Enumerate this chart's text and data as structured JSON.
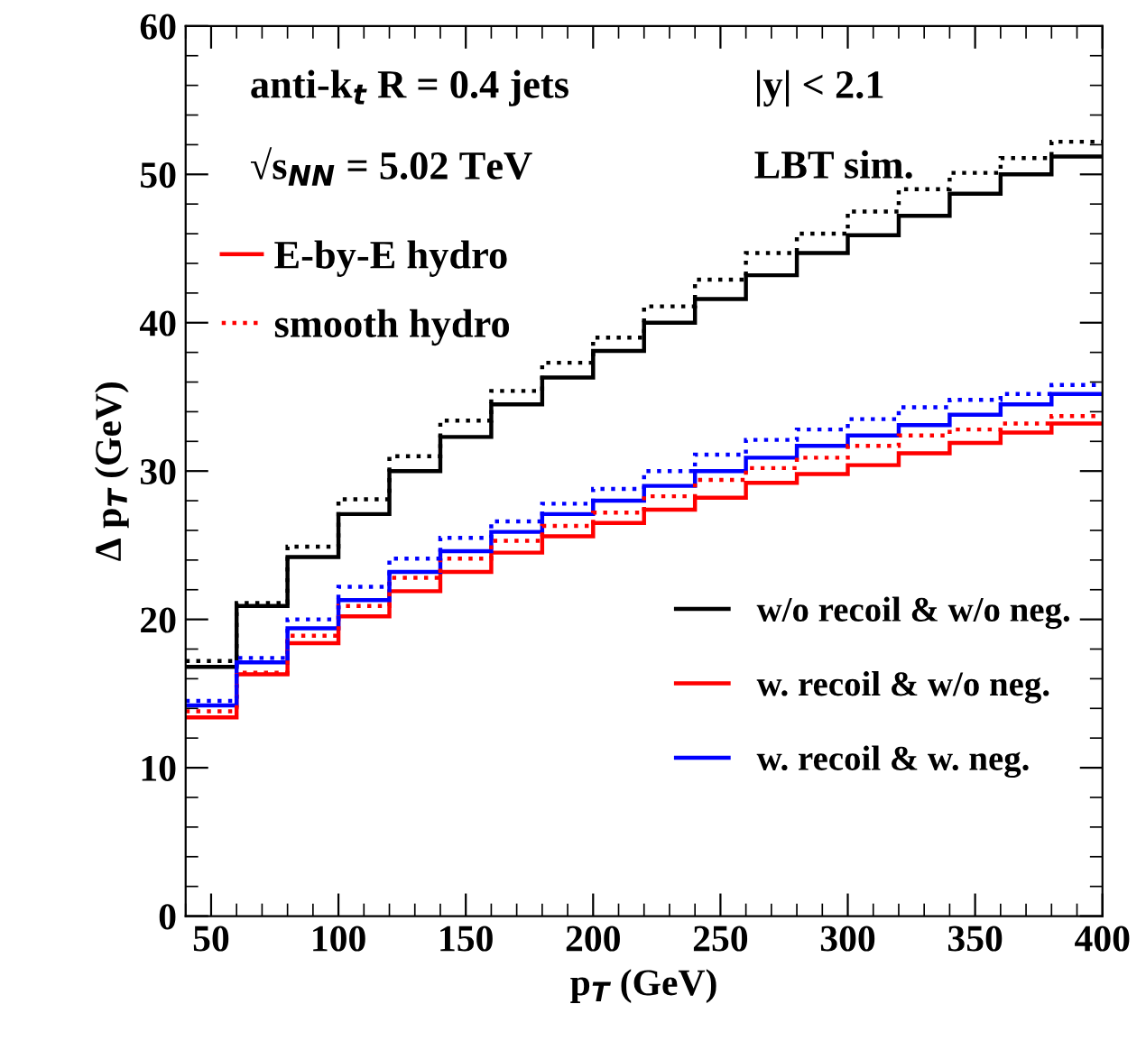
{
  "chart_data": {
    "type": "histogram",
    "xlabel": "p$_{T}$ (GeV)",
    "ylabel": "Δ p$_{T}$ (GeV)",
    "annotations": [
      "anti-k$_{t}$ R = 0.4 jets",
      "|y| < 2.1",
      "√s$_{NN}$ = 5.02 TeV",
      "LBT sim.",
      "E-by-E hydro",
      "smooth hydro"
    ],
    "bins": [
      40,
      60,
      80,
      100,
      120,
      140,
      160,
      180,
      200,
      220,
      240,
      260,
      280,
      300,
      320,
      340,
      360,
      380,
      400
    ],
    "series": [
      {
        "name": "w/o recoil & w/o neg.",
        "color": "#000000",
        "line_style": "solid",
        "values": [
          16.8,
          20.9,
          24.2,
          27.1,
          30.0,
          32.3,
          34.5,
          36.3,
          38.1,
          40.0,
          41.6,
          43.2,
          44.7,
          45.9,
          47.2,
          48.7,
          50.0,
          51.2
        ]
      },
      {
        "name": "w. recoil & w/o neg.",
        "color": "#ff0000",
        "line_style": "solid",
        "values": [
          13.4,
          16.3,
          18.4,
          20.2,
          21.9,
          23.2,
          24.5,
          25.6,
          26.5,
          27.4,
          28.2,
          29.2,
          29.8,
          30.4,
          31.2,
          31.9,
          32.6,
          33.2
        ]
      },
      {
        "name": "w. recoil & w. neg.",
        "color": "#0000ff",
        "line_style": "solid",
        "values": [
          14.2,
          17.1,
          19.4,
          21.3,
          23.2,
          24.6,
          25.9,
          27.1,
          28.0,
          29.0,
          30.0,
          30.9,
          31.7,
          32.4,
          33.1,
          33.8,
          34.5,
          35.2
        ]
      },
      {
        "color": "#000000",
        "line_style": "dotted",
        "values": [
          17.2,
          21.1,
          24.9,
          28.1,
          31.0,
          33.4,
          35.4,
          37.3,
          39.0,
          41.1,
          42.9,
          44.7,
          46.0,
          47.5,
          49.0,
          50.1,
          51.1,
          52.2
        ]
      },
      {
        "color": "#ff0000",
        "line_style": "dotted",
        "values": [
          13.8,
          16.4,
          18.9,
          20.9,
          22.8,
          24.1,
          25.3,
          26.3,
          27.2,
          28.3,
          29.4,
          30.2,
          30.9,
          31.7,
          32.4,
          32.8,
          33.2,
          33.7
        ]
      },
      {
        "color": "#0000ff",
        "line_style": "dotted",
        "values": [
          14.5,
          17.4,
          20.0,
          22.2,
          24.1,
          25.5,
          26.6,
          27.8,
          28.8,
          30.0,
          31.1,
          32.1,
          32.8,
          33.5,
          34.3,
          34.8,
          35.2,
          35.8
        ]
      }
    ],
    "xlim": [
      40,
      400
    ],
    "xticks": [
      50,
      100,
      150,
      200,
      250,
      300,
      350,
      400
    ],
    "ylim": [
      0,
      60
    ],
    "yticks": [
      0,
      10,
      20,
      30,
      40,
      50,
      60
    ],
    "grid": false,
    "legend": "bottom right"
  }
}
